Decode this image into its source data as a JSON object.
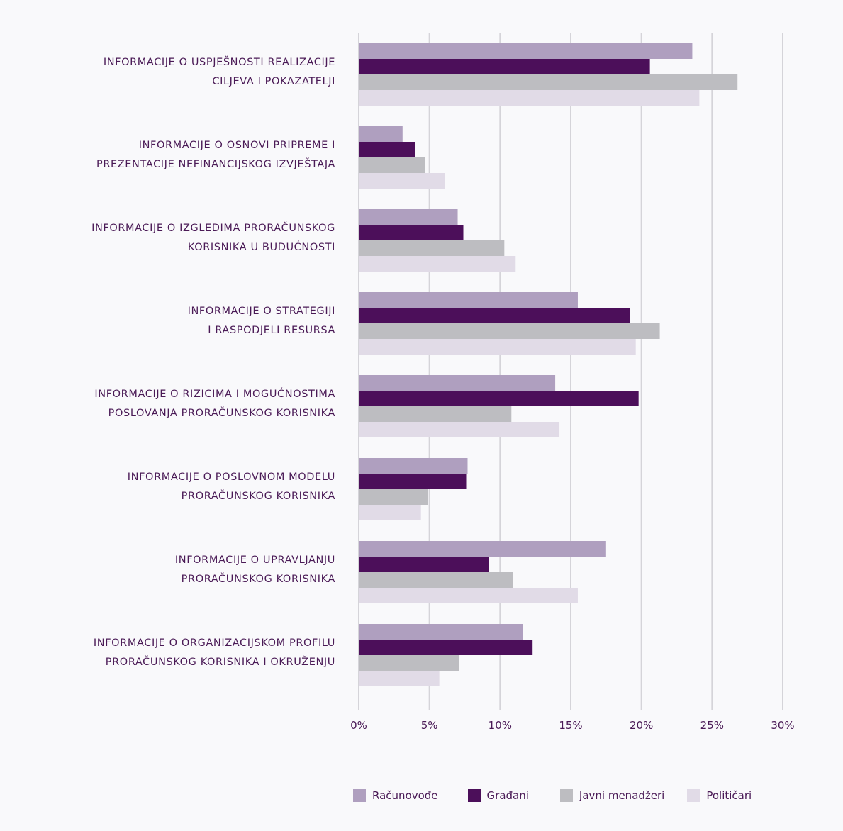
{
  "chart_data": {
    "type": "bar",
    "orientation": "horizontal",
    "xlim": [
      0,
      30
    ],
    "x_ticks": [
      "0%",
      "5%",
      "10%",
      "15%",
      "20%",
      "25%",
      "30%"
    ],
    "grid": true,
    "legend_position": "bottom",
    "categories": [
      [
        "INFORMACIJE O USPJEŠNOSTI REALIZACIJE",
        "CILJEVA I POKAZATELJI"
      ],
      [
        "INFORMACIJE O OSNOVI PRIPREME I",
        "PREZENTACIJE NEFINANCIJSKOG IZVJEŠTAJA"
      ],
      [
        "INFORMACIJE O IZGLEDIMA PRORAČUNSKOG",
        "KORISNIKA U BUDUĆNOSTI"
      ],
      [
        "INFORMACIJE O STRATEGIJI",
        "I RASPODJELI RESURSA"
      ],
      [
        "INFORMACIJE O RIZICIMA I MOGUĆNOSTIMA",
        "POSLOVANJA PRORAČUNSKOG KORISNIKA"
      ],
      [
        "INFORMACIJE O POSLOVNOM MODELU",
        "PRORAČUNSKOG KORISNIKA"
      ],
      [
        "INFORMACIJE O UPRAVLJANJU",
        "PRORAČUNSKOG KORISNIKA"
      ],
      [
        "INFORMACIJE O ORGANIZACIJSKOM PROFILU",
        "PRORAČUNSKOG KORISNIKA I OKRUŽENJU"
      ]
    ],
    "series": [
      {
        "name": "Računovođe",
        "color": "#af9fbf",
        "values": [
          23.6,
          3.1,
          7.0,
          15.5,
          13.9,
          7.7,
          17.5,
          11.6
        ]
      },
      {
        "name": "Građani",
        "color": "#4c0f5a",
        "values": [
          20.6,
          4.0,
          7.4,
          19.2,
          19.8,
          7.6,
          9.2,
          12.3
        ]
      },
      {
        "name": "Javni menadžeri",
        "color": "#bdbdc1",
        "values": [
          26.8,
          4.7,
          10.3,
          21.3,
          10.8,
          4.9,
          10.9,
          7.1
        ]
      },
      {
        "name": "Političari",
        "color": "#e1dbe7",
        "values": [
          24.1,
          6.1,
          11.1,
          19.6,
          14.2,
          4.4,
          15.5,
          5.7
        ]
      }
    ]
  }
}
